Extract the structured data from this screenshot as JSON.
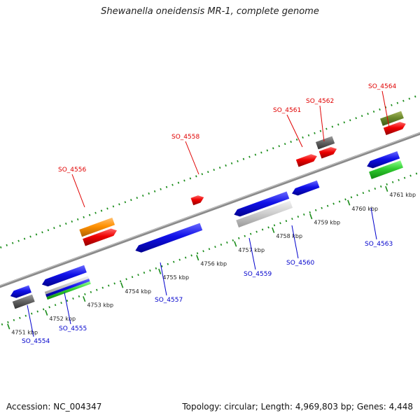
{
  "title": "Shewanella oneidensis MR-1, complete genome",
  "footer": {
    "accession": "Accession: NC_004347",
    "summary": "Topology: circular; Length: 4,969,803 bp; Genes: 4,448"
  },
  "colors": {
    "forward_label": "#e00000",
    "reverse_label": "#0000cc",
    "tick": "#1a8c1a",
    "backbone": "#8a8a8a"
  },
  "kbp_ticks": [
    {
      "label": "4751 kbp",
      "pos": 0.72
    },
    {
      "label": "4752 kbp",
      "pos": 0.9
    },
    {
      "label": "4753 kbp",
      "pos": 1.08
    },
    {
      "label": "4754 kbp",
      "pos": 1.26
    },
    {
      "label": "4755 kbp",
      "pos": 1.44
    },
    {
      "label": "4756 kbp",
      "pos": 1.62
    },
    {
      "label": "4757 kbp",
      "pos": 1.8
    },
    {
      "label": "4758 kbp",
      "pos": 1.98
    },
    {
      "label": "4759 kbp",
      "pos": 2.16
    },
    {
      "label": "4760 kbp",
      "pos": 2.34
    },
    {
      "label": "4761 kbp",
      "pos": 2.52
    }
  ],
  "forward_genes": [
    {
      "id": "SO_4556",
      "label": "SO_4556"
    },
    {
      "id": "SO_4558",
      "label": "SO_4558"
    },
    {
      "id": "SO_4561",
      "label": "SO_4561"
    },
    {
      "id": "SO_4562",
      "label": "SO_4562"
    },
    {
      "id": "SO_4564",
      "label": "SO_4564"
    }
  ],
  "reverse_genes": [
    {
      "id": "SO_4554",
      "label": "SO_4554"
    },
    {
      "id": "SO_4555",
      "label": "SO_4555"
    },
    {
      "id": "SO_4557",
      "label": "SO_4557"
    },
    {
      "id": "SO_4559",
      "label": "SO_4559"
    },
    {
      "id": "SO_4560",
      "label": "SO_4560"
    },
    {
      "id": "SO_4563",
      "label": "SO_4563"
    }
  ]
}
